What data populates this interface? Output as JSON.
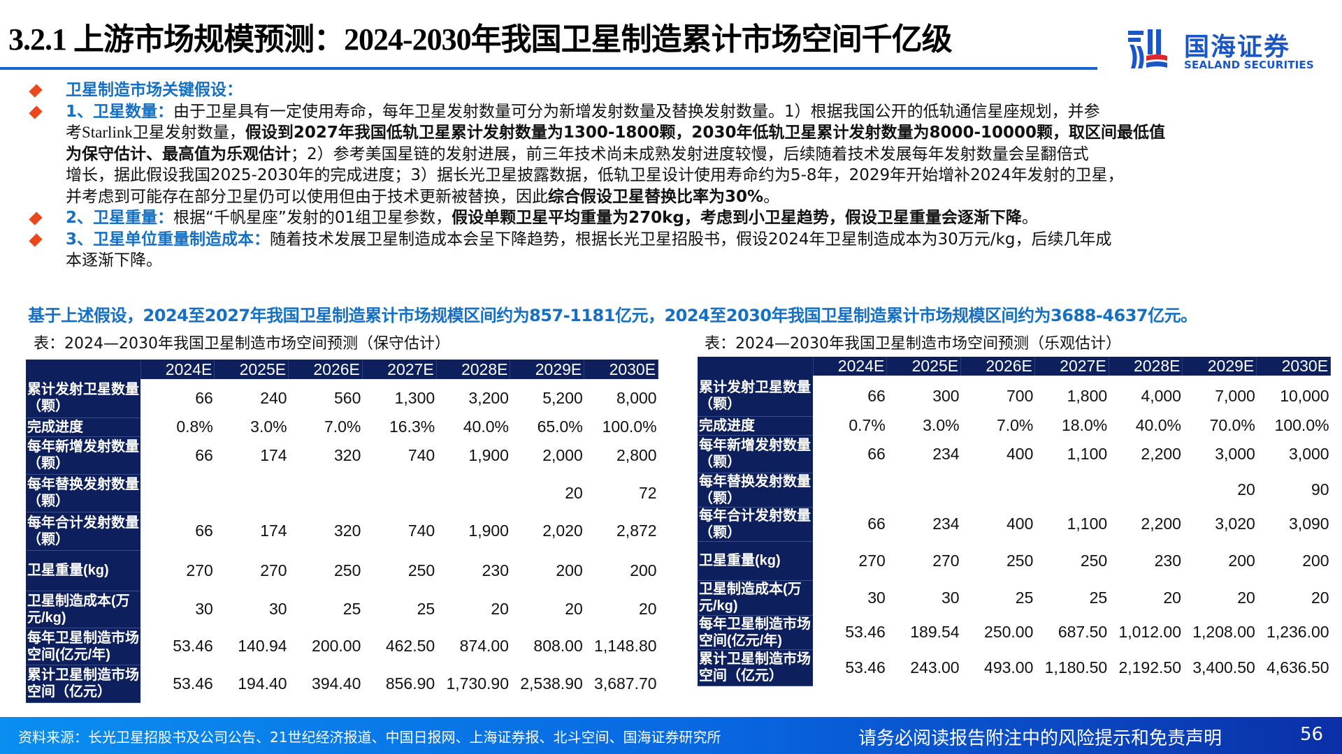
{
  "header": {
    "title": "3.2.1 上游市场规模预测：2024-2030年我国卫星制造累计市场空间千亿级",
    "logo_cn": "国海证券",
    "logo_en": "SEALAND SECURITIES",
    "accent_color": "#1a63d6"
  },
  "assumptions": {
    "heading": "卫星制造市场关键假设：",
    "item1": {
      "head": "1、卫星数量：",
      "l1": "由于卫星具有一定使用寿命，每年卫星发射数量可分为新增发射数量及替换发射数量。1）根据我国公开的低轨通信星座规划，并参",
      "l2a": "考Starlink卫星发射数量，",
      "l2b": "假设到2027年我国低轨卫星累计发射数量为1300-1800颗，2030年低轨卫星累计发射数量为8000-10000颗，取区间最低值",
      "l3a": "为保守估计、最高值为乐观估计",
      "l3b": "；2）参考美国星链的发射进展，前三年技术尚未成熟发射进度较慢，后续随着技术发展每年发射数量会呈翻倍式",
      "l4": "增长，据此假设我国2025-2030年的完成进度；3）据长光卫星披露数据，低轨卫星设计使用寿命约为5-8年，2029年开始增补2024年发射的卫星，",
      "l5a": "并考虑到可能存在部分卫星仍可以使用但由于技术更新被替换，因此",
      "l5b": "综合假设卫星替换比率为30%",
      "l5c": "。"
    },
    "item2": {
      "head": "2、卫星重量：",
      "t1": "根据“千帆星座”发射的01组卫星参数，",
      "t2": "假设单颗卫星平均重量为270kg，考虑到小卫星趋势，假设卫星重量会逐渐下降",
      "t3": "。"
    },
    "item3": {
      "head": "3、卫星单位重量制造成本：",
      "l1": "随着技术发展卫星制造成本会呈下降趋势，根据长光卫星招股书，假设2024年卫星制造成本为30万元/kg，后续几年成",
      "l2": "本逐渐下降。"
    }
  },
  "summary": "基于上述假设，2024至2027年我国卫星制造累计市场规模区间约为857-1181亿元，2024至2030年我国卫星制造累计市场规模区间约为3688-4637亿元。",
  "tables": {
    "years": [
      "2024E",
      "2025E",
      "2026E",
      "2027E",
      "2028E",
      "2029E",
      "2030E"
    ],
    "row_labels": [
      "累计发射卫星数量（颗）",
      "完成进度",
      "每年新增发射数量（颗）",
      "每年替换发射数量（颗）",
      "每年合计发射数量（颗）",
      "卫星重量(kg)",
      "卫星制造成本(万元/kg)",
      "每年卫星制造市场空间(亿元/年)",
      "累计卫星制造市场空间（亿元）"
    ],
    "conservative": {
      "caption": "表：2024—2030年我国卫星制造市场空间预测（保守估计）",
      "rows": [
        [
          "66",
          "240",
          "560",
          "1,300",
          "3,200",
          "5,200",
          "8,000"
        ],
        [
          "0.8%",
          "3.0%",
          "7.0%",
          "16.3%",
          "40.0%",
          "65.0%",
          "100.0%"
        ],
        [
          "66",
          "174",
          "320",
          "740",
          "1,900",
          "2,000",
          "2,800"
        ],
        [
          "",
          "",
          "",
          "",
          "",
          "20",
          "72"
        ],
        [
          "66",
          "174",
          "320",
          "740",
          "1,900",
          "2,020",
          "2,872"
        ],
        [
          "270",
          "270",
          "250",
          "250",
          "230",
          "200",
          "200"
        ],
        [
          "30",
          "30",
          "25",
          "25",
          "20",
          "20",
          "20"
        ],
        [
          "53.46",
          "140.94",
          "200.00",
          "462.50",
          "874.00",
          "808.00",
          "1,148.80"
        ],
        [
          "53.46",
          "194.40",
          "394.40",
          "856.90",
          "1,730.90",
          "2,538.90",
          "3,687.70"
        ]
      ]
    },
    "optimistic": {
      "caption": "表：2024—2030年我国卫星制造市场空间预测（乐观估计）",
      "rows": [
        [
          "66",
          "300",
          "700",
          "1,800",
          "4,000",
          "7,000",
          "10,000"
        ],
        [
          "0.7%",
          "3.0%",
          "7.0%",
          "18.0%",
          "40.0%",
          "70.0%",
          "100.0%"
        ],
        [
          "66",
          "234",
          "400",
          "1,100",
          "2,200",
          "3,000",
          "3,000"
        ],
        [
          "",
          "",
          "",
          "",
          "",
          "20",
          "90"
        ],
        [
          "66",
          "234",
          "400",
          "1,100",
          "2,200",
          "3,020",
          "3,090"
        ],
        [
          "270",
          "270",
          "250",
          "250",
          "230",
          "200",
          "200"
        ],
        [
          "30",
          "30",
          "25",
          "25",
          "20",
          "20",
          "20"
        ],
        [
          "53.46",
          "189.54",
          "250.00",
          "687.50",
          "1,012.00",
          "1,208.00",
          "1,236.00"
        ],
        [
          "53.46",
          "243.00",
          "493.00",
          "1,180.50",
          "2,192.50",
          "3,400.50",
          "4,636.50"
        ]
      ]
    },
    "header_color": "#0d1f5c"
  },
  "footer": {
    "source": "资料来源：长光卫星招股书及公司公告、21世纪经济报道、中国日报网、上海证券报、北斗空间、国海证券研究所",
    "disclaimer": "请务必阅读报告附注中的风险提示和免责声明",
    "page": "56"
  }
}
